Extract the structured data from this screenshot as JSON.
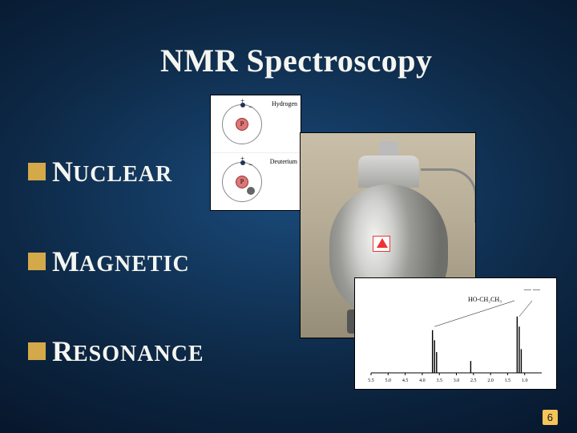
{
  "title": "NMR Spectroscopy",
  "bullets": [
    {
      "first": "N",
      "rest": "UCLEAR"
    },
    {
      "first": "M",
      "rest": "AGNETIC"
    },
    {
      "first": "R",
      "rest": "ESONANCE"
    }
  ],
  "diagram": {
    "top_label": "Hydrogen",
    "bottom_label": "Deuterium",
    "proton_label": "P"
  },
  "spectrum": {
    "peak_label": "HO-CH₂CH₃",
    "structure_hint": "— —",
    "xaxis": {
      "min": 0.5,
      "max": 5.5,
      "step": 0.5,
      "ticks": [
        "5.5",
        "5.0",
        "4.5",
        "4.0",
        "3.5",
        "3.0",
        "2.5",
        "2.0",
        "1.5",
        "1.0"
      ]
    },
    "peaks": [
      {
        "x": 3.7,
        "h": 0.72
      },
      {
        "x": 3.64,
        "h": 0.55
      },
      {
        "x": 3.58,
        "h": 0.35
      },
      {
        "x": 2.58,
        "h": 0.2
      },
      {
        "x": 1.22,
        "h": 0.95
      },
      {
        "x": 1.16,
        "h": 0.78
      },
      {
        "x": 1.1,
        "h": 0.4
      }
    ],
    "colors": {
      "line": "#000000",
      "bg": "#ffffff"
    }
  },
  "colors": {
    "bullet_square": "#d4a94a",
    "text": "#f5f5f0",
    "page_badge_bg": "#f5c55a"
  },
  "page_number": "6"
}
